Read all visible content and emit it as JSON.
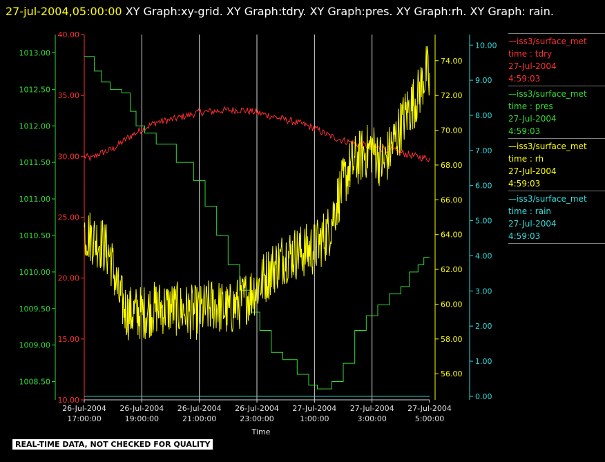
{
  "title": {
    "timestamp": "27-jul-2004,05:00:00",
    "text": " XY Graph:xy-grid.  XY Graph:tdry.  XY Graph:pres.  XY Graph:rh.  XY Graph: rain."
  },
  "footer": "REAL-TIME DATA, NOT CHECKED FOR QUALITY",
  "legend": [
    {
      "line1": "—iss3/surface_met",
      "line2": "time : tdry",
      "line3": "27-Jul-2004",
      "line4": "4:59:03",
      "color": "#ff3030"
    },
    {
      "line1": "—iss3/surface_met",
      "line2": "time : pres",
      "line3": "27-Jul-2004",
      "line4": "4:59:03",
      "color": "#33dd33"
    },
    {
      "line1": "—iss3/surface_met",
      "line2": "time : rh",
      "line3": "27-Jul-2004",
      "line4": "4:59:03",
      "color": "#ffff00"
    },
    {
      "line1": "—iss3/surface_met",
      "line2": "time : rain",
      "line3": "27-Jul-2004",
      "line4": "4:59:03",
      "color": "#33dddd"
    }
  ],
  "chart_data": {
    "type": "line",
    "xlabel": "Time",
    "x_ticks": [
      {
        "d": "26-Jul-2004",
        "t": "17:00:00"
      },
      {
        "d": "26-Jul-2004",
        "t": "19:00:00"
      },
      {
        "d": "26-Jul-2004",
        "t": "21:00:00"
      },
      {
        "d": "26-Jul-2004",
        "t": "23:00:00"
      },
      {
        "d": "27-Jul-2004",
        "t": "1:00:00"
      },
      {
        "d": "27-Jul-2004",
        "t": "3:00:00"
      },
      {
        "d": "27-Jul-2004",
        "t": "5:00:00"
      }
    ],
    "x_range": [
      "26-Jul-2004 17:00:00",
      "27-Jul-2004 5:00:00"
    ],
    "grid": true,
    "axes": [
      {
        "series": "pres",
        "color": "#33dd33",
        "side": "left-outer",
        "ylim": [
          1008.25,
          1013.25
        ],
        "ticks": [
          "1008.50",
          "1009.00",
          "1009.50",
          "1010.00",
          "1010.50",
          "1011.00",
          "1011.50",
          "1012.00",
          "1012.50",
          "1013.00"
        ]
      },
      {
        "series": "tdry",
        "color": "#ff3030",
        "side": "left-inner",
        "ylim": [
          10,
          40
        ],
        "ticks": [
          "10.00",
          "15.00",
          "20.00",
          "25.00",
          "30.00",
          "35.00",
          "40.00"
        ]
      },
      {
        "series": "rh",
        "color": "#ffff00",
        "side": "right-inner",
        "ylim": [
          54.5,
          75.5
        ],
        "ticks": [
          "56.00",
          "58.00",
          "60.00",
          "62.00",
          "64.00",
          "66.00",
          "68.00",
          "70.00",
          "72.00",
          "74.00"
        ]
      },
      {
        "series": "rain",
        "color": "#33dddd",
        "side": "right-outer",
        "ylim": [
          -0.1,
          10.3
        ],
        "ticks": [
          "0.00",
          "1.00",
          "2.00",
          "3.00",
          "4.00",
          "5.00",
          "6.00",
          "7.00",
          "8.00",
          "9.00",
          "10.00"
        ]
      }
    ],
    "series": [
      {
        "name": "tdry",
        "color": "#ff3030",
        "axis": "tdry",
        "points": [
          [
            0,
            30.0
          ],
          [
            0.25,
            29.8
          ],
          [
            0.5,
            30.2
          ],
          [
            1,
            30.6
          ],
          [
            1.5,
            31.5
          ],
          [
            2,
            32.2
          ],
          [
            2.5,
            32.8
          ],
          [
            3,
            33.0
          ],
          [
            3.5,
            33.3
          ],
          [
            4,
            33.6
          ],
          [
            4.5,
            33.7
          ],
          [
            5,
            33.8
          ],
          [
            5.5,
            33.8
          ],
          [
            6,
            33.6
          ],
          [
            6.5,
            33.3
          ],
          [
            7,
            33.0
          ],
          [
            7.5,
            32.7
          ],
          [
            8,
            32.3
          ],
          [
            8.5,
            31.7
          ],
          [
            9,
            31.3
          ],
          [
            9.5,
            31.0
          ],
          [
            10,
            30.8
          ],
          [
            10.5,
            30.6
          ],
          [
            11,
            30.3
          ],
          [
            11.5,
            30.0
          ],
          [
            12,
            29.8
          ]
        ],
        "noise": 0.3
      },
      {
        "name": "pres",
        "color": "#33dd33",
        "axis": "pres",
        "step": true,
        "points": [
          [
            0,
            1012.95
          ],
          [
            0.35,
            1012.75
          ],
          [
            0.6,
            1012.6
          ],
          [
            0.9,
            1012.5
          ],
          [
            1.3,
            1012.45
          ],
          [
            1.6,
            1012.2
          ],
          [
            1.8,
            1012.0
          ],
          [
            2.1,
            1011.9
          ],
          [
            2.5,
            1011.75
          ],
          [
            3.2,
            1011.5
          ],
          [
            3.8,
            1011.25
          ],
          [
            4.2,
            1010.9
          ],
          [
            4.6,
            1010.5
          ],
          [
            5.0,
            1010.1
          ],
          [
            5.4,
            1009.75
          ],
          [
            5.8,
            1009.45
          ],
          [
            6.1,
            1009.2
          ],
          [
            6.5,
            1008.9
          ],
          [
            6.9,
            1008.8
          ],
          [
            7.4,
            1008.6
          ],
          [
            7.8,
            1008.45
          ],
          [
            8.1,
            1008.4
          ],
          [
            8.6,
            1008.5
          ],
          [
            9.0,
            1008.75
          ],
          [
            9.4,
            1009.2
          ],
          [
            9.8,
            1009.4
          ],
          [
            10.2,
            1009.55
          ],
          [
            10.6,
            1009.7
          ],
          [
            11.0,
            1009.8
          ],
          [
            11.3,
            1010.0
          ],
          [
            11.6,
            1010.1
          ],
          [
            11.8,
            1010.2
          ],
          [
            12,
            1010.2
          ]
        ]
      },
      {
        "name": "rh",
        "color": "#ffff00",
        "axis": "rh",
        "points": [
          [
            0,
            64.2
          ],
          [
            0.3,
            63.8
          ],
          [
            0.6,
            63.5
          ],
          [
            0.9,
            62.8
          ],
          [
            1.2,
            60.5
          ],
          [
            1.5,
            59.5
          ],
          [
            2.0,
            59.5
          ],
          [
            2.5,
            59.8
          ],
          [
            3.0,
            59.8
          ],
          [
            3.5,
            59.6
          ],
          [
            4.0,
            59.5
          ],
          [
            4.5,
            60.0
          ],
          [
            5.0,
            59.6
          ],
          [
            5.5,
            60.2
          ],
          [
            6.0,
            61.0
          ],
          [
            6.5,
            62.0
          ],
          [
            7.0,
            62.8
          ],
          [
            7.5,
            63.0
          ],
          [
            8.0,
            63.2
          ],
          [
            8.5,
            64.2
          ],
          [
            8.8,
            66.0
          ],
          [
            9.2,
            67.8
          ],
          [
            9.6,
            68.5
          ],
          [
            10.0,
            69.0
          ],
          [
            10.4,
            68.0
          ],
          [
            10.8,
            69.5
          ],
          [
            11.2,
            71.0
          ],
          [
            11.6,
            72.0
          ],
          [
            11.9,
            73.5
          ],
          [
            12,
            72.5
          ]
        ],
        "noise": 1.6
      },
      {
        "name": "rain",
        "color": "#33dddd",
        "axis": "rain",
        "points": [
          [
            0,
            0.0
          ],
          [
            12,
            0.0
          ]
        ]
      }
    ]
  }
}
